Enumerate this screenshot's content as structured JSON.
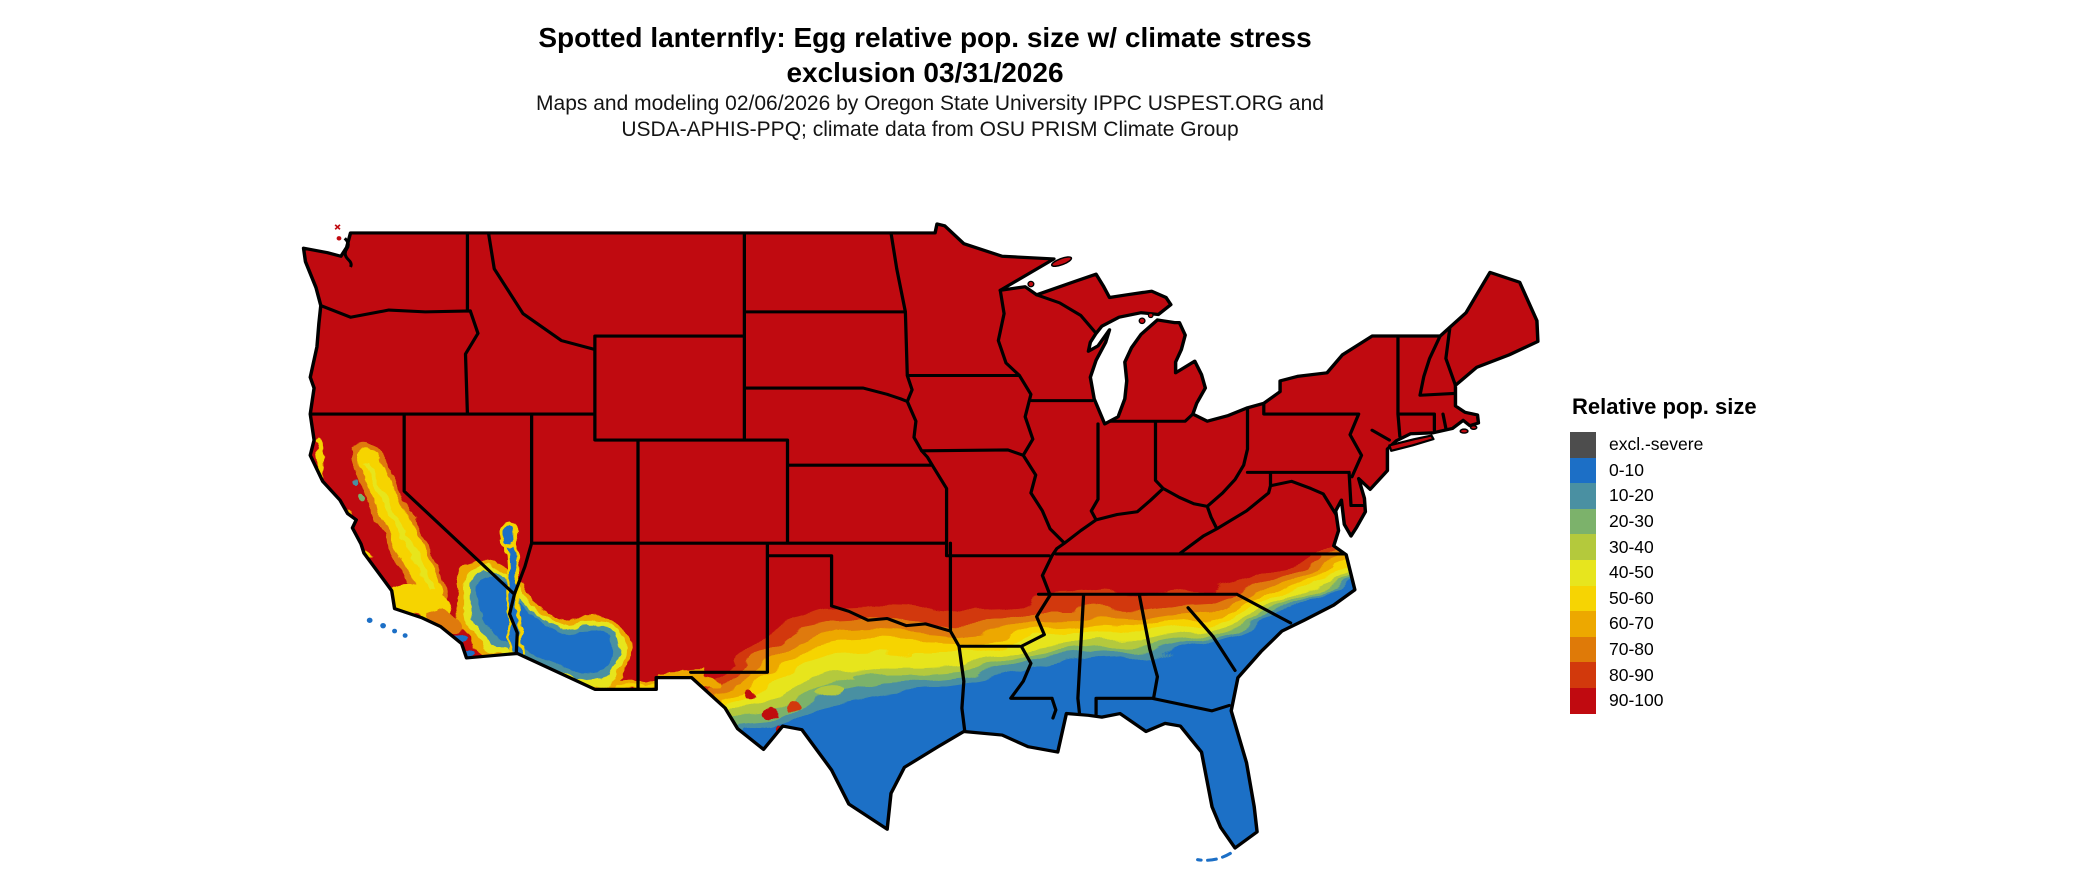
{
  "title": {
    "line1": "Spotted lanternfly: Egg relative pop. size w/ climate stress",
    "line2": "exclusion 03/31/2026"
  },
  "subtitle": {
    "line1": "Maps and modeling 02/06/2026 by Oregon State University IPPC USPEST.ORG and",
    "line2": "USDA-APHIS-PPQ; climate data from OSU PRISM Climate Group"
  },
  "legend": {
    "title": "Relative pop. size",
    "items": [
      {
        "label": "excl.-severe",
        "color": "#4D4D4D"
      },
      {
        "label": "0-10",
        "color": "#1C6FC6"
      },
      {
        "label": "10-20",
        "color": "#4A90A2"
      },
      {
        "label": "20-30",
        "color": "#7CB26B"
      },
      {
        "label": "30-40",
        "color": "#B4C93C"
      },
      {
        "label": "40-50",
        "color": "#E7E51E"
      },
      {
        "label": "50-60",
        "color": "#F6D403"
      },
      {
        "label": "60-70",
        "color": "#EDA800"
      },
      {
        "label": "70-80",
        "color": "#DF7A08"
      },
      {
        "label": "80-90",
        "color": "#D2390C"
      },
      {
        "label": "90-100",
        "color": "#C00A10"
      }
    ]
  },
  "chart_data": {
    "type": "choropleth_map",
    "map_region": "Contiguous United States with state boundaries (Great Lakes and ocean in white)",
    "variable": "Spotted lanternfly egg relative population size (%) with climate stress exclusion",
    "date_shown": "03/31/2026",
    "legend_title": "Relative pop. size",
    "legend_position": "right",
    "classes": [
      {
        "label": "excl.-severe",
        "color": "#4D4D4D"
      },
      {
        "label": "0-10",
        "color": "#1C6FC6"
      },
      {
        "label": "10-20",
        "color": "#4A90A2"
      },
      {
        "label": "20-30",
        "color": "#7CB26B"
      },
      {
        "label": "30-40",
        "color": "#B4C93C"
      },
      {
        "label": "40-50",
        "color": "#E7E51E"
      },
      {
        "label": "50-60",
        "color": "#F6D403"
      },
      {
        "label": "60-70",
        "color": "#EDA800"
      },
      {
        "label": "70-80",
        "color": "#DF7A08"
      },
      {
        "label": "80-90",
        "color": "#D2390C"
      },
      {
        "label": "90-100",
        "color": "#C00A10"
      }
    ],
    "regional_pattern": [
      {
        "region": "Pacific Northwest, Rockies, Great Plains, Midwest, Northeast, Appalachians (most of northern/central/eastern US)",
        "class": "90-100"
      },
      {
        "region": "Southern Texas, Gulf Coast, Louisiana, southern Mississippi/Alabama/Georgia, coastal South Carolina, all of Florida",
        "class": "0-10"
      },
      {
        "region": "East-west ragged transition band from west Texas along the Oklahoma Red River border through Arkansas, central Mississippi/Alabama/Georgia to the Carolina coast",
        "class": "10-90 gradient (orange to teal going south)"
      },
      {
        "region": "California Central Valley / Sierra foothills band",
        "class": "40-80 mixed yellow-orange"
      },
      {
        "region": "Southern California deserts and coast, southwestern Arizona, lower Colorado River",
        "class": "0-10 with 40-70 fringe"
      },
      {
        "region": "Southern New Mexico / Arizona Mexico-border fringe",
        "class": "40-70"
      },
      {
        "region": "excl.-severe (gray) class",
        "class": "not visibly present on map"
      }
    ]
  }
}
